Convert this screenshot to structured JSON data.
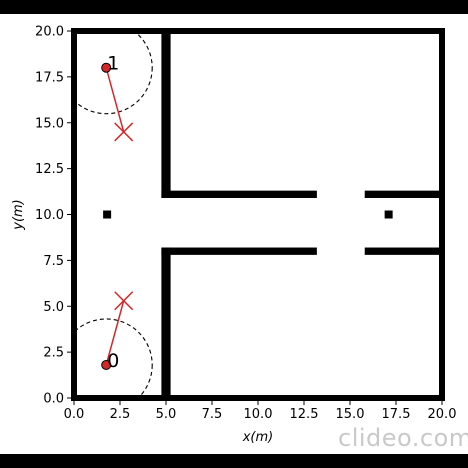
{
  "chart_data": {
    "type": "scatter",
    "title": "",
    "xlabel": "x(m)",
    "ylabel": "y(m)",
    "xlim": [
      0,
      20
    ],
    "ylim": [
      0,
      20
    ],
    "x_ticks": [
      "0.0",
      "2.5",
      "5.0",
      "7.5",
      "10.0",
      "12.5",
      "15.0",
      "17.5",
      "20.0"
    ],
    "y_ticks": [
      "0.0",
      "2.5",
      "5.0",
      "7.5",
      "10.0",
      "12.5",
      "15.0",
      "17.5",
      "20.0"
    ],
    "grid": false,
    "walls": [
      {
        "x0": 4.75,
        "x1": 5.25,
        "y0": 0.0,
        "y1": 8.2
      },
      {
        "x0": 4.75,
        "x1": 5.25,
        "y0": 10.9,
        "y1": 20.0
      },
      {
        "x0": 4.75,
        "x1": 13.2,
        "y0": 7.8,
        "y1": 8.2
      },
      {
        "x0": 4.75,
        "x1": 13.2,
        "y0": 10.9,
        "y1": 11.3
      },
      {
        "x0": 15.8,
        "x1": 20.0,
        "y0": 7.8,
        "y1": 8.2
      },
      {
        "x0": 15.8,
        "x1": 20.0,
        "y0": 10.9,
        "y1": 11.3
      }
    ],
    "obstacles": [
      {
        "x": 1.8,
        "y": 10.0
      },
      {
        "x": 17.1,
        "y": 10.0
      }
    ],
    "agents": [
      {
        "label": "1",
        "x": 1.75,
        "y": 18.0,
        "goal_x": 2.7,
        "goal_y": 14.5,
        "radius": 2.5
      },
      {
        "label": "0",
        "x": 1.75,
        "y": 1.8,
        "goal_x": 2.7,
        "goal_y": 5.3,
        "radius": 2.5
      }
    ],
    "colors": {
      "agent": "#d62728",
      "wall": "#000000",
      "goal": "#d62728",
      "range": "#000000"
    }
  },
  "watermark": "clideo.com"
}
